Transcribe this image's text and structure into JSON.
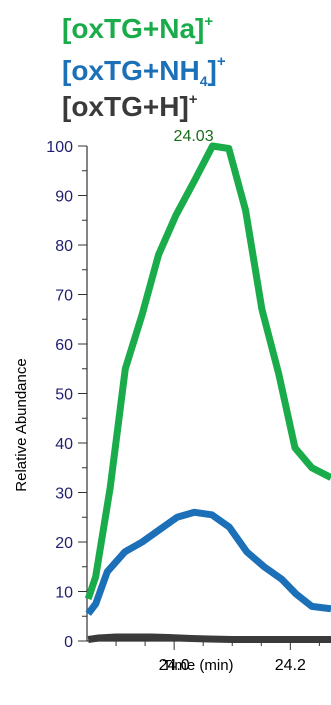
{
  "chart_data": {
    "type": "line",
    "xlabel": "Time (min)",
    "ylabel": "Relative Abundance",
    "xlim": [
      23.85,
      24.27
    ],
    "ylim": [
      0,
      100
    ],
    "x_ticks": [
      "24.0",
      "24.2"
    ],
    "y_ticks": [
      "0",
      "10",
      "20",
      "30",
      "40",
      "50",
      "60",
      "70",
      "80",
      "90",
      "100"
    ],
    "grid": false,
    "legend_position": "top",
    "annotation": {
      "text": "24.03",
      "x": 24.03,
      "y": 100
    },
    "series": [
      {
        "name": "[oxTG+Na]",
        "charge": "+",
        "color": "#1aac4a",
        "x": [
          23.852,
          23.865,
          23.89,
          23.916,
          23.945,
          23.973,
          24.003,
          24.035,
          24.066,
          24.094,
          24.123,
          24.151,
          24.18,
          24.208,
          24.237,
          24.27
        ],
        "y": [
          8.5,
          13,
          31,
          55,
          66,
          78,
          86,
          93,
          100,
          99.5,
          87,
          67,
          54,
          39,
          35,
          33
        ]
      },
      {
        "name": "[oxTG+NH4]",
        "charge": "+",
        "color": "#1c70b8",
        "x": [
          23.852,
          23.865,
          23.885,
          23.915,
          23.945,
          23.975,
          24.005,
          24.035,
          24.065,
          24.095,
          24.125,
          24.155,
          24.185,
          24.21,
          24.237,
          24.27
        ],
        "y": [
          5.5,
          7.5,
          14,
          18,
          20,
          22.5,
          25,
          26,
          25.5,
          23,
          18,
          15,
          12.5,
          9.5,
          7,
          6.5
        ]
      },
      {
        "name": "[oxTG+H]",
        "charge": "+",
        "color": "#3a3a3a",
        "x": [
          23.852,
          23.87,
          23.9,
          23.93,
          23.96,
          23.99,
          24.03,
          24.06,
          24.1,
          24.15,
          24.2,
          24.27
        ],
        "y": [
          0.3,
          0.6,
          0.8,
          0.8,
          0.8,
          0.7,
          0.5,
          0.4,
          0.3,
          0.3,
          0.3,
          0.3
        ]
      }
    ]
  }
}
